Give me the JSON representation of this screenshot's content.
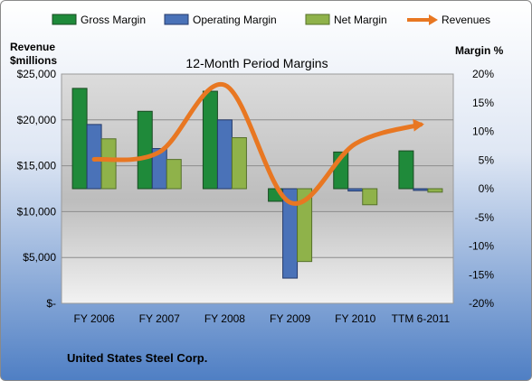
{
  "colors": {
    "gross": "#1f8a3a",
    "operating": "#4a72b8",
    "net": "#8fb24a",
    "revenue": "#e87722"
  },
  "chart_data": {
    "type": "bar",
    "title": "12-Month Period Margins",
    "company": "United States Steel Corp.",
    "left_axis_title": [
      "Revenue",
      "$millions"
    ],
    "right_axis_title": "Margin %",
    "categories": [
      "FY 2006",
      "FY 2007",
      "FY 2008",
      "FY 2009",
      "FY 2010",
      "TTM 6-2011"
    ],
    "left_ticks": [
      {
        "value": 25000,
        "label": "$25,000"
      },
      {
        "value": 20000,
        "label": "$20,000"
      },
      {
        "value": 15000,
        "label": "$15,000"
      },
      {
        "value": 10000,
        "label": "$10,000"
      },
      {
        "value": 5000,
        "label": "$5,000"
      },
      {
        "value": 0,
        "label": "$-"
      }
    ],
    "right_ticks": [
      {
        "value": 20,
        "label": "20%"
      },
      {
        "value": 15,
        "label": "15%"
      },
      {
        "value": 10,
        "label": "10%"
      },
      {
        "value": 5,
        "label": "5%"
      },
      {
        "value": 0,
        "label": "0%"
      },
      {
        "value": -5,
        "label": "-5%"
      },
      {
        "value": -10,
        "label": "-10%"
      },
      {
        "value": -15,
        "label": "-15%"
      },
      {
        "value": -20,
        "label": "-20%"
      }
    ],
    "ylim_left": [
      0,
      25000
    ],
    "ylim_right": [
      -20,
      20
    ],
    "grid": true,
    "legend_position": "top",
    "series": [
      {
        "name": "Gross Margin",
        "axis": "right",
        "type": "bar",
        "color_key": "gross",
        "values": [
          17.5,
          13.5,
          17.0,
          -2.2,
          6.4,
          6.6
        ]
      },
      {
        "name": "Operating Margin",
        "axis": "right",
        "type": "bar",
        "color_key": "operating",
        "values": [
          11.2,
          7.0,
          12.0,
          -15.6,
          -0.4,
          -0.3
        ]
      },
      {
        "name": "Net Margin",
        "axis": "right",
        "type": "bar",
        "color_key": "net",
        "values": [
          8.7,
          5.1,
          8.9,
          -12.7,
          -2.8,
          -0.6
        ]
      },
      {
        "name": "Revenues",
        "axis": "left",
        "type": "line",
        "color_key": "revenue",
        "values": [
          15700,
          16500,
          23800,
          11000,
          17400,
          19500
        ]
      }
    ]
  }
}
